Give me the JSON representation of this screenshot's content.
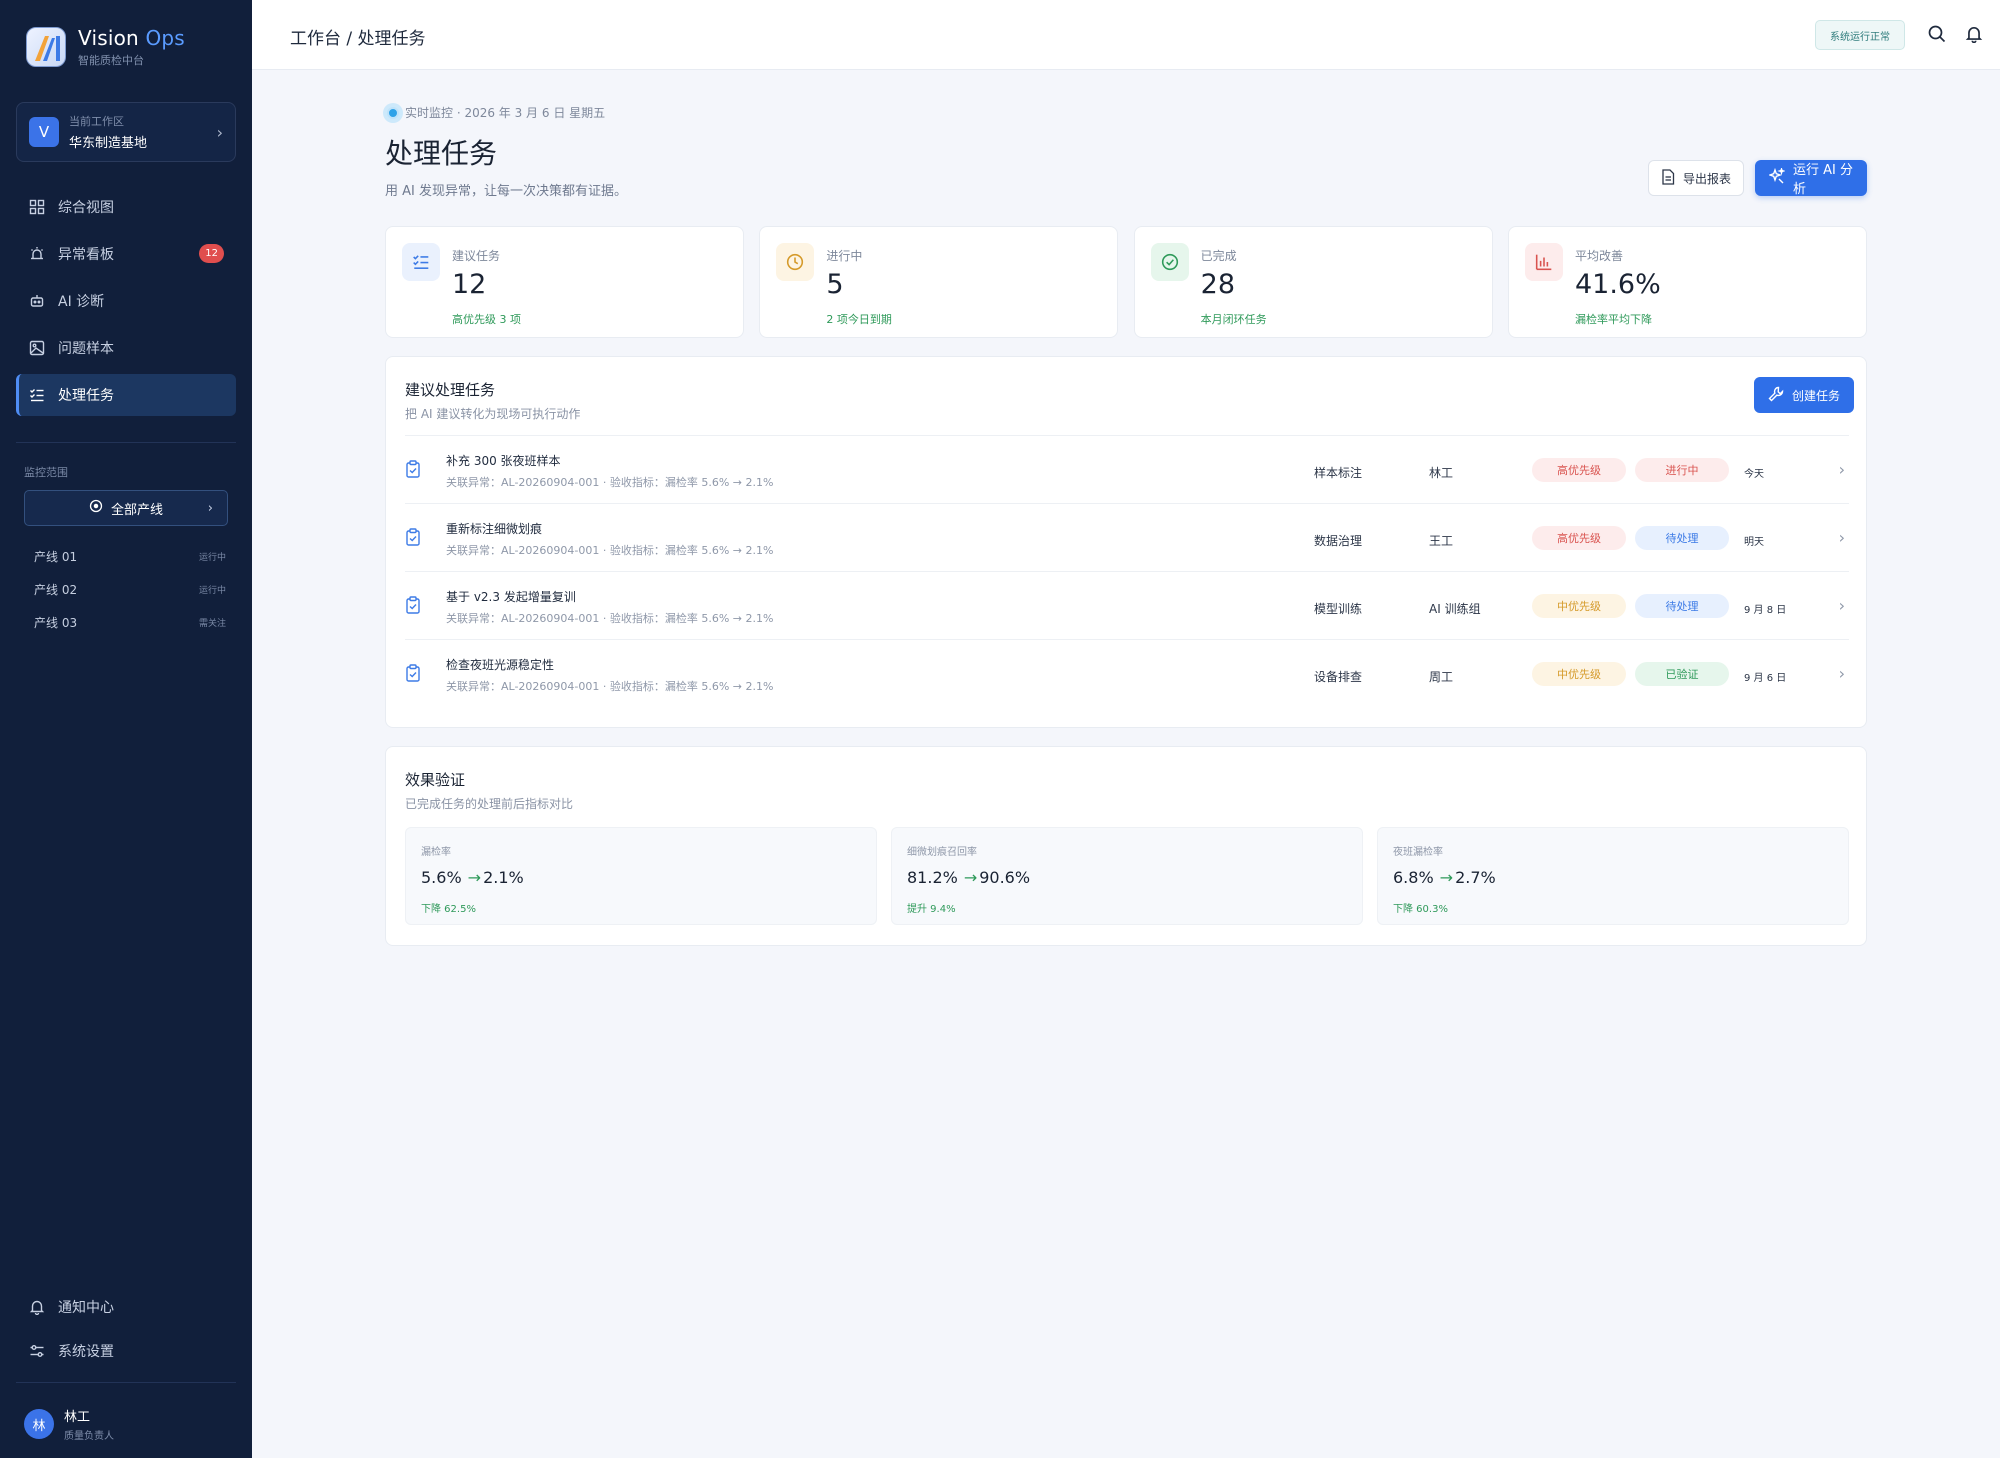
{
  "brand": {
    "name_main": "Vision ",
    "name_accent": "Ops",
    "subtitle": "智能质检中台"
  },
  "workspace": {
    "avatar": "V",
    "label": "当前工作区",
    "name": "华东制造基地"
  },
  "nav": [
    {
      "label": "综合视图",
      "icon": "grid-icon"
    },
    {
      "label": "异常看板",
      "icon": "alarm-icon",
      "badge": "12"
    },
    {
      "label": "AI 诊断",
      "icon": "robot-icon"
    },
    {
      "label": "问题样本",
      "icon": "image-icon"
    },
    {
      "label": "处理任务",
      "icon": "checklist-icon",
      "active": true
    }
  ],
  "scope": {
    "title": "监控范围",
    "button": "全部产线",
    "lines": [
      {
        "name": "产线 01",
        "status": "运行中"
      },
      {
        "name": "产线 02",
        "status": "运行中"
      },
      {
        "name": "产线 03",
        "status": "需关注"
      }
    ]
  },
  "bottom_nav": [
    {
      "label": "通知中心",
      "icon": "bell-icon"
    },
    {
      "label": "系统设置",
      "icon": "sliders-icon"
    }
  ],
  "user": {
    "avatar": "林",
    "name": "林工",
    "role": "质量负责人"
  },
  "header": {
    "breadcrumb": "工作台 / 处理任务",
    "status": "系统运行正常"
  },
  "page": {
    "live": "实时监控 · 2026 年 3 月 6 日 星期五",
    "title": "处理任务",
    "subtitle": "用 AI 发现异常，让每一次决策都有证据。",
    "export_label": "导出报表",
    "run_label": "运行 AI 分析"
  },
  "stats": [
    {
      "label": "建议任务",
      "value": "12",
      "note": "高优先级 3 项",
      "icon": "checklist-icon",
      "color": "#3d7be6",
      "bg": "#eaf1fd"
    },
    {
      "label": "进行中",
      "value": "5",
      "note": "2 项今日到期",
      "icon": "clock-icon",
      "color": "#d59a2a",
      "bg": "#fdf4e3"
    },
    {
      "label": "已完成",
      "value": "28",
      "note": "本月闭环任务",
      "icon": "check-circle-icon",
      "color": "#2f9a5a",
      "bg": "#e6f6ec"
    },
    {
      "label": "平均改善",
      "value": "41.6%",
      "note": "漏检率平均下降",
      "icon": "bar-chart-icon",
      "color": "#d9534f",
      "bg": "#fdecec"
    }
  ],
  "tasks_card": {
    "title": "建议处理任务",
    "subtitle": "把 AI 建议转化为现场可执行动作",
    "create_label": "创建任务",
    "rows": [
      {
        "title": "补充 300 张夜班样本",
        "meta": "关联异常：AL-20260904-001 · 验收指标：漏检率 5.6% → 2.1%",
        "category": "样本标注",
        "owner": "林工",
        "priority": "高优先级",
        "priority_class": "high",
        "state": "进行中",
        "state_class": "running",
        "due": "今天"
      },
      {
        "title": "重新标注细微划痕",
        "meta": "关联异常：AL-20260904-001 · 验收指标：漏检率 5.6% → 2.1%",
        "category": "数据治理",
        "owner": "王工",
        "priority": "高优先级",
        "priority_class": "high",
        "state": "待处理",
        "state_class": "pending",
        "due": "明天"
      },
      {
        "title": "基于 v2.3 发起增量复训",
        "meta": "关联异常：AL-20260904-001 · 验收指标：漏检率 5.6% → 2.1%",
        "category": "模型训练",
        "owner": "AI 训练组",
        "priority": "中优先级",
        "priority_class": "mid",
        "state": "待处理",
        "state_class": "pending",
        "due": "9 月 8 日"
      },
      {
        "title": "检查夜班光源稳定性",
        "meta": "关联异常：AL-20260904-001 · 验收指标：漏检率 5.6% → 2.1%",
        "category": "设备排查",
        "owner": "周工",
        "priority": "中优先级",
        "priority_class": "mid",
        "state": "已验证",
        "state_class": "verified",
        "due": "9 月 6 日"
      }
    ]
  },
  "effect_card": {
    "title": "效果验证",
    "subtitle": "已完成任务的处理前后指标对比",
    "metrics": [
      {
        "label": "漏检率",
        "before": "5.6%",
        "after": "2.1%",
        "change": "下降 62.5%"
      },
      {
        "label": "细微划痕召回率",
        "before": "81.2%",
        "after": "90.6%",
        "change": "提升 9.4%"
      },
      {
        "label": "夜班漏检率",
        "before": "6.8%",
        "after": "2.7%",
        "change": "下降 60.3%"
      }
    ]
  },
  "colors": {
    "sidebar": "#111f3b",
    "primary": "#2f6fe8",
    "success": "#2f9a5a",
    "danger": "#d9534f",
    "warning": "#d59a2a"
  }
}
